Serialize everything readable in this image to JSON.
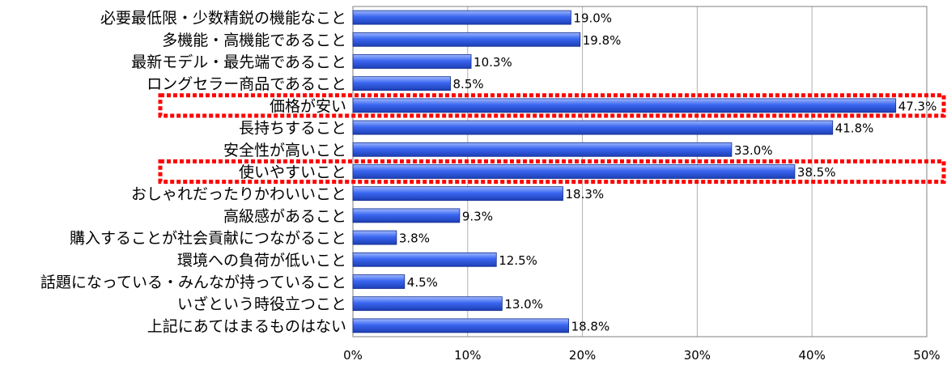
{
  "chart_data": {
    "type": "bar",
    "orientation": "horizontal",
    "categories": [
      "必要最低限・少数精鋭の機能なこと",
      "多機能・高機能であること",
      "最新モデル・最先端であること",
      "ロングセラー商品であること",
      "価格が安い",
      "長持ちすること",
      "安全性が高いこと",
      "使いやすいこと",
      "おしゃれだったりかわいいこと",
      "高級感があること",
      "購入することが社会貢献につながること",
      "環境への負荷が低いこと",
      "話題になっている・みんなが持っていること",
      "いざという時役立つこと",
      "上記にあてはまるものはない"
    ],
    "values": [
      19.0,
      19.8,
      10.3,
      8.5,
      47.3,
      41.8,
      33.0,
      38.5,
      18.3,
      9.3,
      3.8,
      12.5,
      4.5,
      13.0,
      18.8
    ],
    "value_labels": [
      "19.0%",
      "19.8%",
      "10.3%",
      "8.5%",
      "47.3%",
      "41.8%",
      "33.0%",
      "38.5%",
      "18.3%",
      "9.3%",
      "3.8%",
      "12.5%",
      "4.5%",
      "13.0%",
      "18.8%"
    ],
    "xlim": [
      0,
      50
    ],
    "x_ticks": [
      "0%",
      "10%",
      "20%",
      "30%",
      "40%",
      "50%"
    ],
    "x_tick_values": [
      0,
      10,
      20,
      30,
      40,
      50
    ],
    "highlighted_categories": [
      "価格が安い",
      "使いやすいこと"
    ],
    "grid": true,
    "colors": {
      "bar_top": "#9fb8ff",
      "bar_mid": "#3a66f0",
      "bar_bottom": "#1d3fb5",
      "bar_edge": "#0f2a8a",
      "grid": "#b0b0b0",
      "highlight": "#ff0000"
    }
  }
}
